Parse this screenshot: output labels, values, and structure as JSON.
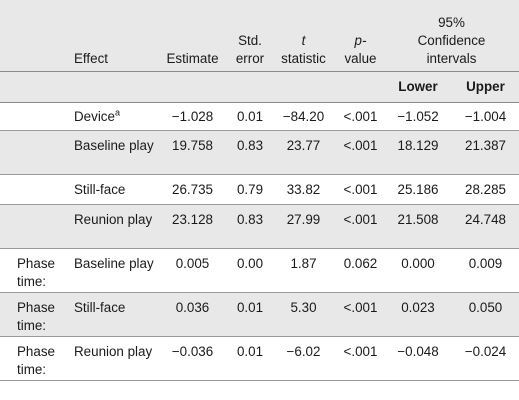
{
  "header": {
    "effect": "Effect",
    "estimate": "Estimate",
    "std_error_1": "Std.",
    "std_error_2": "error",
    "t_1": "t",
    "t_2": "statistic",
    "p_1": "p-",
    "p_2": "value",
    "ci_1": "95%",
    "ci_2": "Confidence",
    "ci_3": "intervals",
    "lower": "Lower",
    "upper": "Upper"
  },
  "rows": [
    {
      "group": "",
      "effect": "Device",
      "sup": "a",
      "estimate": "−1.028",
      "se": "0.01",
      "t": "−84.20",
      "p": "<.001",
      "lower": "−1.052",
      "upper": "−1.004"
    },
    {
      "group": "",
      "effect": "Baseline play",
      "estimate": "19.758",
      "se": "0.83",
      "t": "23.77",
      "p": "<.001",
      "lower": "18.129",
      "upper": "21.387"
    },
    {
      "group": "",
      "effect": "Still-face",
      "estimate": "26.735",
      "se": "0.79",
      "t": "33.82",
      "p": "<.001",
      "lower": "25.186",
      "upper": "28.285"
    },
    {
      "group": "",
      "effect": "Reunion play",
      "estimate": "23.128",
      "se": "0.83",
      "t": "27.99",
      "p": "<.001",
      "lower": "21.508",
      "upper": "24.748"
    },
    {
      "group": "Phase time:",
      "effect": "Baseline play",
      "estimate": "0.005",
      "se": "0.00",
      "t": "1.87",
      "p": "0.062",
      "lower": "0.000",
      "upper": "0.009"
    },
    {
      "group": "Phase time:",
      "effect": "Still-face",
      "estimate": "0.036",
      "se": "0.01",
      "t": "5.30",
      "p": "<.001",
      "lower": "0.023",
      "upper": "0.050"
    },
    {
      "group": "Phase time:",
      "effect": "Reunion play",
      "estimate": "−0.036",
      "se": "0.01",
      "t": "−6.02",
      "p": "<.001",
      "lower": "−0.048",
      "upper": "−0.024"
    }
  ]
}
